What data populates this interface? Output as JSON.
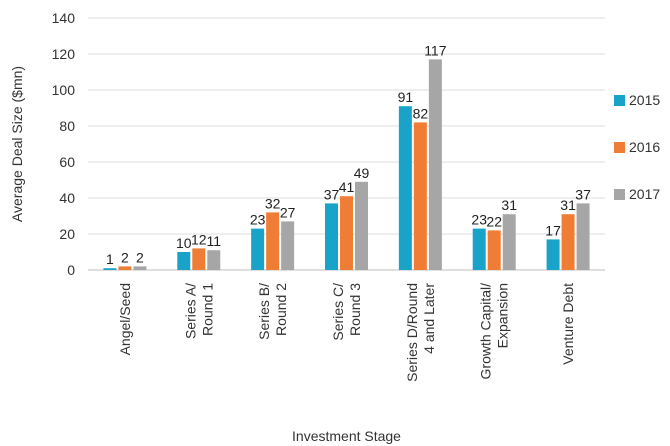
{
  "chart_data": {
    "type": "bar",
    "title": "",
    "xlabel": "Investment Stage",
    "ylabel": "Average Deal Size ($mn)",
    "ylim": [
      0,
      140
    ],
    "yticks": [
      0,
      20,
      40,
      60,
      80,
      100,
      120,
      140
    ],
    "grid": true,
    "legend_position": "right",
    "categories": [
      [
        "Angel/Seed"
      ],
      [
        "Series A/",
        "Round 1"
      ],
      [
        "Series B/",
        "Round 2"
      ],
      [
        "Series C/",
        "Round 3"
      ],
      [
        "Series D/Round",
        "4 and Later"
      ],
      [
        "Growth Capital/",
        "Expansion"
      ],
      [
        "Venture Debt"
      ]
    ],
    "series": [
      {
        "name": "2015",
        "color": "#1aa3c9",
        "values": [
          1,
          10,
          23,
          37,
          91,
          23,
          17
        ]
      },
      {
        "name": "2016",
        "color": "#f07d35",
        "values": [
          2,
          12,
          32,
          41,
          82,
          22,
          31
        ]
      },
      {
        "name": "2017",
        "color": "#a6a6a6",
        "values": [
          2,
          11,
          27,
          49,
          117,
          31,
          37
        ]
      }
    ]
  }
}
